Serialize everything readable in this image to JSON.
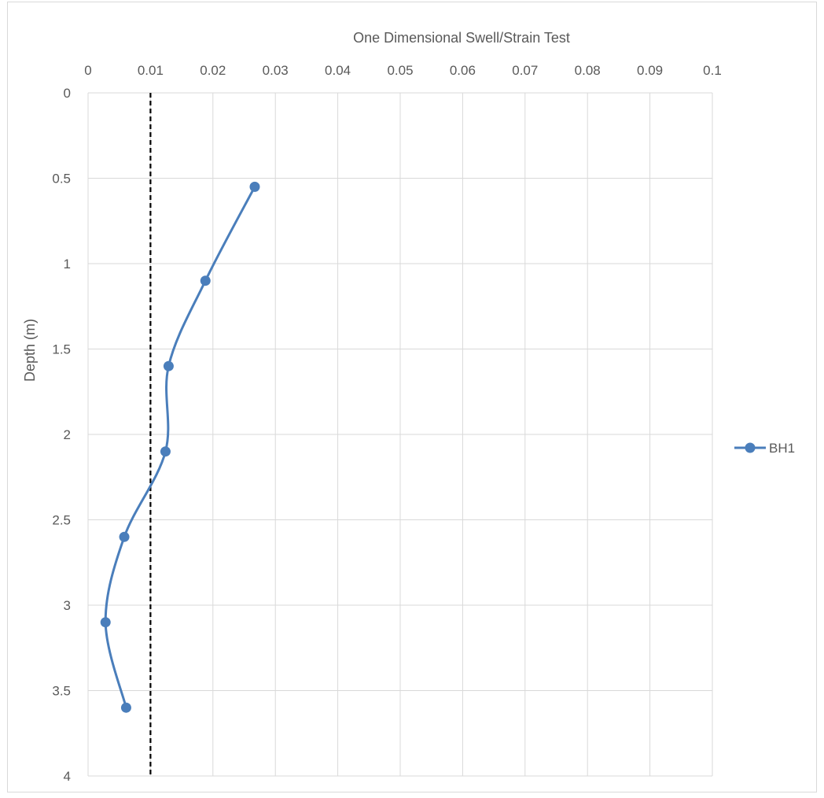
{
  "chart_data": {
    "type": "line",
    "title": "",
    "xlabel": "One Dimensional Swell/Strain Test",
    "ylabel": "Depth (m)",
    "xlim": [
      0,
      0.1
    ],
    "ylim": [
      0,
      4
    ],
    "y_reversed": true,
    "x_axis_position": "top",
    "x_ticks": [
      0,
      0.01,
      0.02,
      0.03,
      0.04,
      0.05,
      0.06,
      0.07,
      0.08,
      0.09,
      0.1
    ],
    "x_tick_labels": [
      "0",
      "0.01",
      "0.02",
      "0.03",
      "0.04",
      "0.05",
      "0.06",
      "0.07",
      "0.08",
      "0.09",
      "0.1"
    ],
    "y_ticks": [
      0,
      0.5,
      1,
      1.5,
      2,
      2.5,
      3,
      3.5,
      4
    ],
    "y_tick_labels": [
      "0",
      "0.5",
      "1",
      "1.5",
      "2",
      "2.5",
      "3",
      "3.5",
      "4"
    ],
    "grid": true,
    "legend": "right",
    "series": [
      {
        "name": "BH1",
        "color": "#4a7ebb",
        "smooth": true,
        "marker": "circle",
        "x": [
          0.0267,
          0.0188,
          0.0129,
          0.0124,
          0.0058,
          0.0028,
          0.0061
        ],
        "y": [
          0.55,
          1.1,
          1.6,
          2.1,
          2.6,
          3.1,
          3.6
        ]
      }
    ],
    "reference_lines": [
      {
        "orientation": "vertical",
        "x": 0.01,
        "style": "dashed",
        "color": "#000000"
      }
    ]
  }
}
